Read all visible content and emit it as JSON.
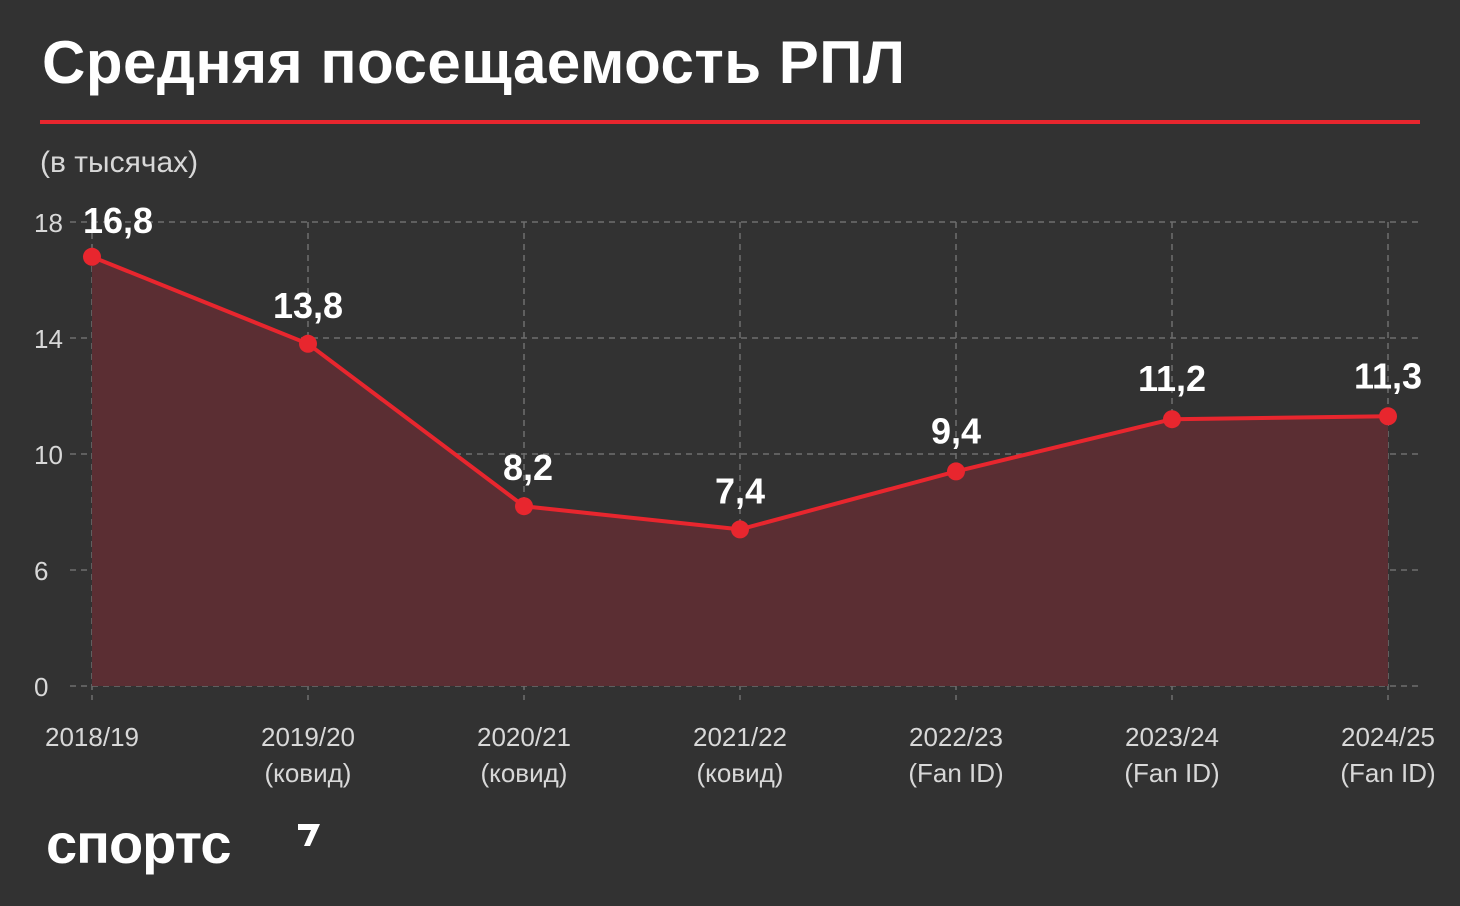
{
  "title": "Средняя посещаемость РПЛ",
  "units_label": "(в тысячах)",
  "brand": {
    "logo_text": "спортс"
  },
  "colors": {
    "background": "#323232",
    "accent": "#e8262e",
    "area_fill": "#5b2e33",
    "grid": "#6e6e6e",
    "tick_text": "#d8d8d8"
  },
  "chart_data": {
    "type": "area",
    "categories": [
      "2018/19",
      "2019/20",
      "2020/21",
      "2021/22",
      "2022/23",
      "2023/24",
      "2024/25"
    ],
    "category_sublabels": [
      "",
      "(ковид)",
      "(ковид)",
      "(ковид)",
      "(Fan ID)",
      "(Fan ID)",
      "(Fan ID)"
    ],
    "values": [
      16.8,
      13.8,
      8.2,
      7.4,
      9.4,
      11.2,
      11.3
    ],
    "value_labels": [
      "16,8",
      "13,8",
      "8,2",
      "7,4",
      "9,4",
      "11,2",
      "11,3"
    ],
    "y_ticks": [
      "0",
      "6",
      "10",
      "14",
      "18"
    ],
    "grid": true,
    "line_color": "#e8262e",
    "marker": "circle"
  }
}
